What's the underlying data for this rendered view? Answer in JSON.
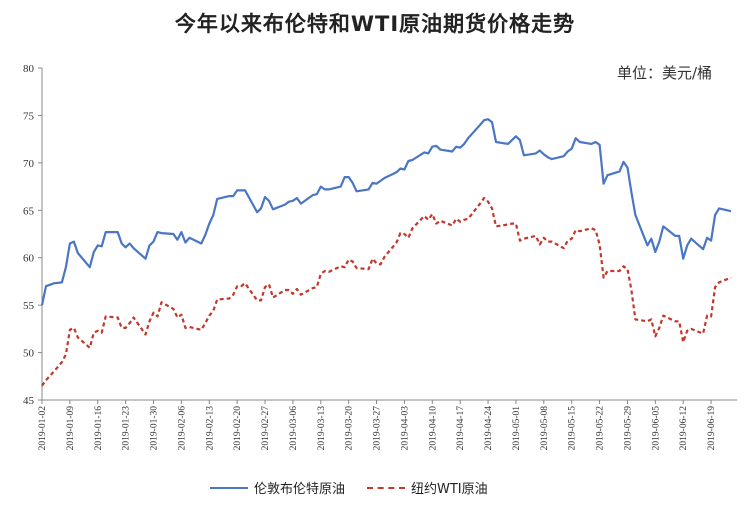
{
  "title": "今年以来布伦特和WTI原油期货价格走势",
  "unit": "单位：美元/桶",
  "legend": [
    "伦敦布伦特原油",
    "纽约WTI原油"
  ],
  "chart_data": {
    "type": "line",
    "title": "今年以来布伦特和WTI原油期货价格走势",
    "ylabel": "单位：美元/桶",
    "ylim": [
      45,
      80
    ],
    "yticks": [
      45,
      50,
      55,
      60,
      65,
      70,
      75,
      80
    ],
    "grid": false,
    "legend_position": "bottom",
    "x_tick_labels": [
      "2019-01-02",
      "2019-01-09",
      "2019-01-16",
      "2019-01-23",
      "2019-01-30",
      "2019-02-06",
      "2019-02-13",
      "2019-02-20",
      "2019-02-27",
      "2019-03-06",
      "2019-03-13",
      "2019-03-20",
      "2019-03-27",
      "2019-04-03",
      "2019-04-10",
      "2019-04-17",
      "2019-04-24",
      "2019-05-01",
      "2019-05-08",
      "2019-05-15",
      "2019-05-22",
      "2019-05-29",
      "2019-06-05",
      "2019-06-12",
      "2019-06-19"
    ],
    "series": [
      {
        "name": "伦敦布伦特原油",
        "color": "#4a76c3",
        "style": "solid",
        "points": [
          [
            "2019-01-02",
            55.0
          ],
          [
            "2019-01-03",
            57.0
          ],
          [
            "2019-01-05",
            57.3
          ],
          [
            "2019-01-07",
            57.4
          ],
          [
            "2019-01-08",
            59.0
          ],
          [
            "2019-01-09",
            61.5
          ],
          [
            "2019-01-10",
            61.7
          ],
          [
            "2019-01-11",
            60.5
          ],
          [
            "2019-01-14",
            59.0
          ],
          [
            "2019-01-15",
            60.6
          ],
          [
            "2019-01-16",
            61.3
          ],
          [
            "2019-01-17",
            61.2
          ],
          [
            "2019-01-18",
            62.7
          ],
          [
            "2019-01-21",
            62.7
          ],
          [
            "2019-01-22",
            61.5
          ],
          [
            "2019-01-23",
            61.1
          ],
          [
            "2019-01-24",
            61.5
          ],
          [
            "2019-01-25",
            61.0
          ],
          [
            "2019-01-28",
            59.9
          ],
          [
            "2019-01-29",
            61.3
          ],
          [
            "2019-01-30",
            61.7
          ],
          [
            "2019-01-31",
            62.7
          ],
          [
            "2019-02-01",
            62.6
          ],
          [
            "2019-02-04",
            62.5
          ],
          [
            "2019-02-05",
            61.9
          ],
          [
            "2019-02-06",
            62.7
          ],
          [
            "2019-02-07",
            61.6
          ],
          [
            "2019-02-08",
            62.1
          ],
          [
            "2019-02-11",
            61.5
          ],
          [
            "2019-02-12",
            62.4
          ],
          [
            "2019-02-13",
            63.6
          ],
          [
            "2019-02-14",
            64.5
          ],
          [
            "2019-02-15",
            66.2
          ],
          [
            "2019-02-18",
            66.5
          ],
          [
            "2019-02-19",
            66.5
          ],
          [
            "2019-02-20",
            67.1
          ],
          [
            "2019-02-21",
            67.1
          ],
          [
            "2019-02-22",
            67.1
          ],
          [
            "2019-02-25",
            64.8
          ],
          [
            "2019-02-26",
            65.2
          ],
          [
            "2019-02-27",
            66.4
          ],
          [
            "2019-02-28",
            66.0
          ],
          [
            "2019-03-01",
            65.1
          ],
          [
            "2019-03-04",
            65.6
          ],
          [
            "2019-03-05",
            65.9
          ],
          [
            "2019-03-06",
            66.0
          ],
          [
            "2019-03-07",
            66.3
          ],
          [
            "2019-03-08",
            65.7
          ],
          [
            "2019-03-11",
            66.6
          ],
          [
            "2019-03-12",
            66.7
          ],
          [
            "2019-03-13",
            67.5
          ],
          [
            "2019-03-14",
            67.2
          ],
          [
            "2019-03-15",
            67.2
          ],
          [
            "2019-03-18",
            67.5
          ],
          [
            "2019-03-19",
            68.5
          ],
          [
            "2019-03-20",
            68.5
          ],
          [
            "2019-03-21",
            67.9
          ],
          [
            "2019-03-22",
            67.0
          ],
          [
            "2019-03-25",
            67.2
          ],
          [
            "2019-03-26",
            67.9
          ],
          [
            "2019-03-27",
            67.8
          ],
          [
            "2019-03-28",
            68.1
          ],
          [
            "2019-03-29",
            68.4
          ],
          [
            "2019-04-01",
            69.0
          ],
          [
            "2019-04-02",
            69.4
          ],
          [
            "2019-04-03",
            69.3
          ],
          [
            "2019-04-04",
            70.2
          ],
          [
            "2019-04-05",
            70.3
          ],
          [
            "2019-04-08",
            71.1
          ],
          [
            "2019-04-09",
            71.0
          ],
          [
            "2019-04-10",
            71.7
          ],
          [
            "2019-04-11",
            71.8
          ],
          [
            "2019-04-12",
            71.4
          ],
          [
            "2019-04-15",
            71.2
          ],
          [
            "2019-04-16",
            71.7
          ],
          [
            "2019-04-17",
            71.6
          ],
          [
            "2019-04-18",
            72.0
          ],
          [
            "2019-04-19",
            72.6
          ],
          [
            "2019-04-22",
            74.0
          ],
          [
            "2019-04-23",
            74.5
          ],
          [
            "2019-04-24",
            74.6
          ],
          [
            "2019-04-25",
            74.3
          ],
          [
            "2019-04-26",
            72.2
          ],
          [
            "2019-04-29",
            72.0
          ],
          [
            "2019-04-30",
            72.4
          ],
          [
            "2019-05-01",
            72.8
          ],
          [
            "2019-05-02",
            72.4
          ],
          [
            "2019-05-03",
            70.8
          ],
          [
            "2019-05-06",
            71.0
          ],
          [
            "2019-05-07",
            71.3
          ],
          [
            "2019-05-08",
            70.9
          ],
          [
            "2019-05-09",
            70.6
          ],
          [
            "2019-05-10",
            70.4
          ],
          [
            "2019-05-13",
            70.7
          ],
          [
            "2019-05-14",
            71.2
          ],
          [
            "2019-05-15",
            71.5
          ],
          [
            "2019-05-16",
            72.6
          ],
          [
            "2019-05-17",
            72.2
          ],
          [
            "2019-05-20",
            72.0
          ],
          [
            "2019-05-21",
            72.2
          ],
          [
            "2019-05-22",
            71.9
          ],
          [
            "2019-05-23",
            67.8
          ],
          [
            "2019-05-24",
            68.7
          ],
          [
            "2019-05-27",
            69.1
          ],
          [
            "2019-05-28",
            70.1
          ],
          [
            "2019-05-29",
            69.5
          ],
          [
            "2019-05-30",
            66.9
          ],
          [
            "2019-05-31",
            64.5
          ],
          [
            "2019-06-03",
            61.3
          ],
          [
            "2019-06-04",
            62.0
          ],
          [
            "2019-06-05",
            60.6
          ],
          [
            "2019-06-06",
            61.7
          ],
          [
            "2019-06-07",
            63.3
          ],
          [
            "2019-06-10",
            62.3
          ],
          [
            "2019-06-11",
            62.3
          ],
          [
            "2019-06-12",
            59.9
          ],
          [
            "2019-06-13",
            61.3
          ],
          [
            "2019-06-14",
            62.0
          ],
          [
            "2019-06-17",
            60.9
          ],
          [
            "2019-06-18",
            62.1
          ],
          [
            "2019-06-19",
            61.8
          ],
          [
            "2019-06-20",
            64.5
          ],
          [
            "2019-06-21",
            65.2
          ],
          [
            "2019-06-24",
            64.9
          ]
        ]
      },
      {
        "name": "纽约WTI原油",
        "color": "#c0392b",
        "style": "dashed",
        "points": [
          [
            "2019-01-02",
            46.5
          ],
          [
            "2019-01-03",
            47.1
          ],
          [
            "2019-01-05",
            48.0
          ],
          [
            "2019-01-07",
            49.0
          ],
          [
            "2019-01-08",
            49.8
          ],
          [
            "2019-01-09",
            52.4
          ],
          [
            "2019-01-10",
            52.6
          ],
          [
            "2019-01-11",
            51.6
          ],
          [
            "2019-01-14",
            50.5
          ],
          [
            "2019-01-15",
            52.1
          ],
          [
            "2019-01-16",
            52.3
          ],
          [
            "2019-01-17",
            52.1
          ],
          [
            "2019-01-18",
            53.8
          ],
          [
            "2019-01-21",
            53.7
          ],
          [
            "2019-01-22",
            52.6
          ],
          [
            "2019-01-23",
            52.6
          ],
          [
            "2019-01-24",
            53.1
          ],
          [
            "2019-01-25",
            53.7
          ],
          [
            "2019-01-28",
            51.9
          ],
          [
            "2019-01-29",
            53.3
          ],
          [
            "2019-01-30",
            54.2
          ],
          [
            "2019-01-31",
            53.8
          ],
          [
            "2019-02-01",
            55.3
          ],
          [
            "2019-02-04",
            54.6
          ],
          [
            "2019-02-05",
            53.7
          ],
          [
            "2019-02-06",
            54.0
          ],
          [
            "2019-02-07",
            52.6
          ],
          [
            "2019-02-08",
            52.7
          ],
          [
            "2019-02-11",
            52.4
          ],
          [
            "2019-02-12",
            53.1
          ],
          [
            "2019-02-13",
            53.9
          ],
          [
            "2019-02-14",
            54.4
          ],
          [
            "2019-02-15",
            55.6
          ],
          [
            "2019-02-18",
            55.7
          ],
          [
            "2019-02-19",
            56.1
          ],
          [
            "2019-02-20",
            57.0
          ],
          [
            "2019-02-21",
            57.0
          ],
          [
            "2019-02-22",
            57.3
          ],
          [
            "2019-02-25",
            55.5
          ],
          [
            "2019-02-26",
            55.5
          ],
          [
            "2019-02-27",
            56.9
          ],
          [
            "2019-02-28",
            57.2
          ],
          [
            "2019-03-01",
            55.8
          ],
          [
            "2019-03-04",
            56.6
          ],
          [
            "2019-03-05",
            56.6
          ],
          [
            "2019-03-06",
            56.2
          ],
          [
            "2019-03-07",
            56.7
          ],
          [
            "2019-03-08",
            56.1
          ],
          [
            "2019-03-11",
            56.8
          ],
          [
            "2019-03-12",
            56.9
          ],
          [
            "2019-03-13",
            58.3
          ],
          [
            "2019-03-14",
            58.6
          ],
          [
            "2019-03-15",
            58.5
          ],
          [
            "2019-03-18",
            59.1
          ],
          [
            "2019-03-19",
            59.0
          ],
          [
            "2019-03-20",
            59.8
          ],
          [
            "2019-03-21",
            59.6
          ],
          [
            "2019-03-22",
            58.9
          ],
          [
            "2019-03-25",
            58.8
          ],
          [
            "2019-03-26",
            59.9
          ],
          [
            "2019-03-27",
            59.4
          ],
          [
            "2019-03-28",
            59.3
          ],
          [
            "2019-03-29",
            60.1
          ],
          [
            "2019-04-01",
            61.6
          ],
          [
            "2019-04-02",
            62.6
          ],
          [
            "2019-04-03",
            62.5
          ],
          [
            "2019-04-04",
            62.1
          ],
          [
            "2019-04-05",
            63.1
          ],
          [
            "2019-04-08",
            64.4
          ],
          [
            "2019-04-09",
            64.0
          ],
          [
            "2019-04-10",
            64.6
          ],
          [
            "2019-04-11",
            63.6
          ],
          [
            "2019-04-12",
            63.9
          ],
          [
            "2019-04-15",
            63.4
          ],
          [
            "2019-04-16",
            64.1
          ],
          [
            "2019-04-17",
            63.8
          ],
          [
            "2019-04-18",
            64.0
          ],
          [
            "2019-04-19",
            64.1
          ],
          [
            "2019-04-22",
            65.7
          ],
          [
            "2019-04-23",
            66.3
          ],
          [
            "2019-04-24",
            65.9
          ],
          [
            "2019-04-25",
            65.2
          ],
          [
            "2019-04-26",
            63.3
          ],
          [
            "2019-04-29",
            63.5
          ],
          [
            "2019-04-30",
            63.6
          ],
          [
            "2019-05-01",
            63.6
          ],
          [
            "2019-05-02",
            61.8
          ],
          [
            "2019-05-03",
            62.0
          ],
          [
            "2019-05-06",
            62.3
          ],
          [
            "2019-05-07",
            61.4
          ],
          [
            "2019-05-08",
            62.1
          ],
          [
            "2019-05-09",
            61.7
          ],
          [
            "2019-05-10",
            61.7
          ],
          [
            "2019-05-13",
            61.0
          ],
          [
            "2019-05-14",
            61.8
          ],
          [
            "2019-05-15",
            62.0
          ],
          [
            "2019-05-16",
            62.9
          ],
          [
            "2019-05-17",
            62.8
          ],
          [
            "2019-05-20",
            63.1
          ],
          [
            "2019-05-21",
            62.9
          ],
          [
            "2019-05-22",
            61.4
          ],
          [
            "2019-05-23",
            57.9
          ],
          [
            "2019-05-24",
            58.6
          ],
          [
            "2019-05-27",
            58.6
          ],
          [
            "2019-05-28",
            59.1
          ],
          [
            "2019-05-29",
            58.8
          ],
          [
            "2019-05-30",
            56.6
          ],
          [
            "2019-05-31",
            53.5
          ],
          [
            "2019-06-03",
            53.3
          ],
          [
            "2019-06-04",
            53.5
          ],
          [
            "2019-06-05",
            51.7
          ],
          [
            "2019-06-06",
            52.6
          ],
          [
            "2019-06-07",
            53.9
          ],
          [
            "2019-06-10",
            53.3
          ],
          [
            "2019-06-11",
            53.3
          ],
          [
            "2019-06-12",
            51.1
          ],
          [
            "2019-06-13",
            52.3
          ],
          [
            "2019-06-14",
            52.5
          ],
          [
            "2019-06-17",
            52.0
          ],
          [
            "2019-06-18",
            53.9
          ],
          [
            "2019-06-19",
            53.8
          ],
          [
            "2019-06-20",
            56.9
          ],
          [
            "2019-06-21",
            57.4
          ],
          [
            "2019-06-24",
            57.9
          ]
        ]
      }
    ]
  }
}
